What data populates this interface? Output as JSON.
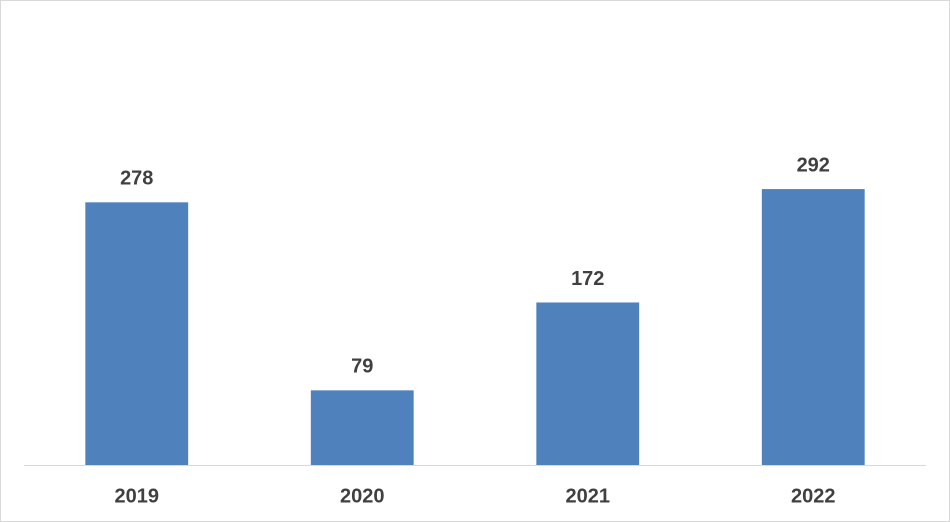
{
  "chart_data": {
    "type": "bar",
    "categories": [
      "2019",
      "2020",
      "2021",
      "2022"
    ],
    "values": [
      278,
      79,
      172,
      292
    ],
    "color": "#4f81bd",
    "ylim": [
      0,
      490
    ]
  }
}
